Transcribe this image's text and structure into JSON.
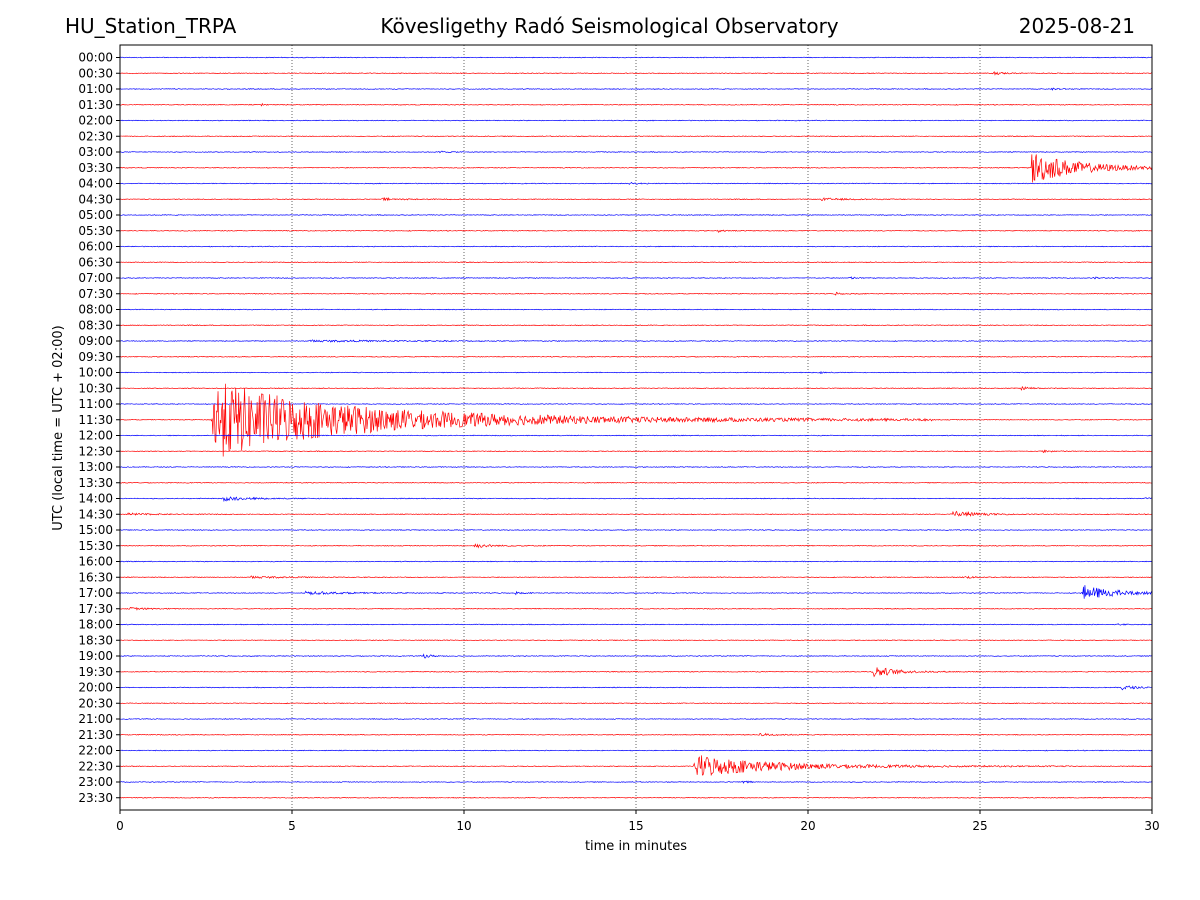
{
  "header": {
    "station": "HU_Station_TRPA",
    "observatory": "Kövesligethy Radó Seismological Observatory",
    "date": "2025-08-21"
  },
  "chart_data": {
    "type": "line",
    "title": "Kövesligethy Radó Seismological Observatory",
    "xlabel": "time in minutes",
    "ylabel": "UTC (local time = UTC + 02:00)",
    "xlim": [
      0,
      30
    ],
    "x_ticks": [
      "0",
      "5",
      "10",
      "15",
      "20",
      "25",
      "30"
    ],
    "x_grid": [
      5,
      10,
      15,
      20,
      25
    ],
    "row_colors": [
      "#0000ff",
      "#ff0000"
    ],
    "rows": [
      {
        "label": "00:00"
      },
      {
        "label": "00:30"
      },
      {
        "label": "01:00"
      },
      {
        "label": "01:30"
      },
      {
        "label": "02:00"
      },
      {
        "label": "02:30"
      },
      {
        "label": "03:00"
      },
      {
        "label": "03:30"
      },
      {
        "label": "04:00"
      },
      {
        "label": "04:30"
      },
      {
        "label": "05:00"
      },
      {
        "label": "05:30"
      },
      {
        "label": "06:00"
      },
      {
        "label": "06:30"
      },
      {
        "label": "07:00"
      },
      {
        "label": "07:30"
      },
      {
        "label": "08:00"
      },
      {
        "label": "08:30"
      },
      {
        "label": "09:00"
      },
      {
        "label": "09:30"
      },
      {
        "label": "10:00"
      },
      {
        "label": "10:30"
      },
      {
        "label": "11:00"
      },
      {
        "label": "11:30"
      },
      {
        "label": "12:00"
      },
      {
        "label": "12:30"
      },
      {
        "label": "13:00"
      },
      {
        "label": "13:30"
      },
      {
        "label": "14:00"
      },
      {
        "label": "14:30"
      },
      {
        "label": "15:00"
      },
      {
        "label": "15:30"
      },
      {
        "label": "16:00"
      },
      {
        "label": "16:30"
      },
      {
        "label": "17:00"
      },
      {
        "label": "17:30"
      },
      {
        "label": "18:00"
      },
      {
        "label": "18:30"
      },
      {
        "label": "19:00"
      },
      {
        "label": "19:30"
      },
      {
        "label": "20:00"
      },
      {
        "label": "20:30"
      },
      {
        "label": "21:00"
      },
      {
        "label": "21:30"
      },
      {
        "label": "22:00"
      },
      {
        "label": "22:30"
      },
      {
        "label": "23:00"
      },
      {
        "label": "23:30"
      }
    ],
    "events": [
      {
        "row": 1,
        "t": 25.4,
        "amp": 0.35,
        "dur": 0.7
      },
      {
        "row": 2,
        "t": 27.1,
        "amp": 0.3,
        "dur": 0.5
      },
      {
        "row": 3,
        "t": 4.1,
        "amp": 0.35,
        "dur": 0.2
      },
      {
        "row": 6,
        "t": 9.3,
        "amp": 0.25,
        "dur": 0.6
      },
      {
        "row": 7,
        "t": 26.5,
        "amp": 4.2,
        "dur": 3.0
      },
      {
        "row": 8,
        "t": 14.8,
        "amp": 0.25,
        "dur": 0.6
      },
      {
        "row": 9,
        "t": 7.6,
        "amp": 0.3,
        "dur": 1.4
      },
      {
        "row": 9,
        "t": 20.4,
        "amp": 0.3,
        "dur": 1.6
      },
      {
        "row": 11,
        "t": 17.4,
        "amp": 0.35,
        "dur": 0.4
      },
      {
        "row": 14,
        "t": 21.2,
        "amp": 0.35,
        "dur": 0.5
      },
      {
        "row": 14,
        "t": 28.3,
        "amp": 0.3,
        "dur": 0.4
      },
      {
        "row": 15,
        "t": 20.8,
        "amp": 0.45,
        "dur": 0.3
      },
      {
        "row": 18,
        "t": 5.5,
        "amp": 0.2,
        "dur": 8.0
      },
      {
        "row": 20,
        "t": 20.3,
        "amp": 0.4,
        "dur": 0.3
      },
      {
        "row": 21,
        "t": 26.2,
        "amp": 0.35,
        "dur": 0.8
      },
      {
        "row": 23,
        "t": 2.7,
        "amp": 10.0,
        "dur": 9.5
      },
      {
        "row": 23,
        "t": 12.2,
        "amp": 0.25,
        "dur": 0.5
      },
      {
        "row": 25,
        "t": 26.8,
        "amp": 0.3,
        "dur": 0.8
      },
      {
        "row": 28,
        "t": 3.0,
        "amp": 0.55,
        "dur": 1.7
      },
      {
        "row": 28,
        "t": 29.8,
        "amp": 0.3,
        "dur": 0.3
      },
      {
        "row": 29,
        "t": 0.2,
        "amp": 0.3,
        "dur": 1.5
      },
      {
        "row": 29,
        "t": 24.2,
        "amp": 1.1,
        "dur": 1.2
      },
      {
        "row": 31,
        "t": 10.3,
        "amp": 0.5,
        "dur": 1.2
      },
      {
        "row": 33,
        "t": 3.8,
        "amp": 0.25,
        "dur": 2.5
      },
      {
        "row": 33,
        "t": 24.5,
        "amp": 0.3,
        "dur": 1.0
      },
      {
        "row": 34,
        "t": 5.4,
        "amp": 0.35,
        "dur": 3.0
      },
      {
        "row": 34,
        "t": 11.5,
        "amp": 0.3,
        "dur": 0.4
      },
      {
        "row": 34,
        "t": 28.0,
        "amp": 2.0,
        "dur": 2.0
      },
      {
        "row": 35,
        "t": 0.3,
        "amp": 0.3,
        "dur": 1.2
      },
      {
        "row": 36,
        "t": 29.0,
        "amp": 0.25,
        "dur": 0.4
      },
      {
        "row": 38,
        "t": 8.8,
        "amp": 0.6,
        "dur": 0.5
      },
      {
        "row": 39,
        "t": 21.9,
        "amp": 1.6,
        "dur": 1.3
      },
      {
        "row": 40,
        "t": 29.1,
        "amp": 0.7,
        "dur": 0.8
      },
      {
        "row": 43,
        "t": 18.6,
        "amp": 0.45,
        "dur": 0.9
      },
      {
        "row": 45,
        "t": 16.7,
        "amp": 3.0,
        "dur": 5.0
      },
      {
        "row": 46,
        "t": 18.1,
        "amp": 0.35,
        "dur": 0.4
      }
    ]
  }
}
